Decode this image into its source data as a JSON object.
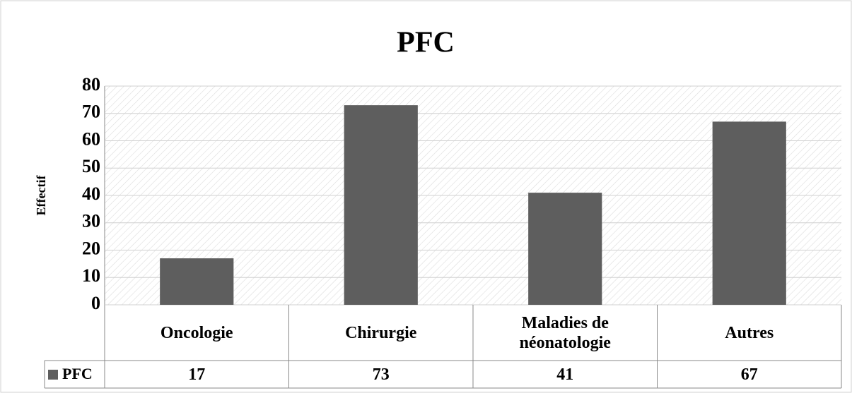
{
  "chart_data": {
    "type": "bar",
    "title": "PFC",
    "y_label": "Effectif",
    "categories": [
      "Oncologie",
      "Chirurgie",
      "Maladies de néonatologie",
      "Autres"
    ],
    "series": [
      {
        "name": "PFC",
        "color": "#5e5e5e",
        "values": [
          17,
          73,
          41,
          67
        ]
      }
    ],
    "ylim": [
      0,
      80
    ],
    "yticks": [
      0,
      10,
      20,
      30,
      40,
      50,
      60,
      70,
      80
    ],
    "grid": true
  }
}
